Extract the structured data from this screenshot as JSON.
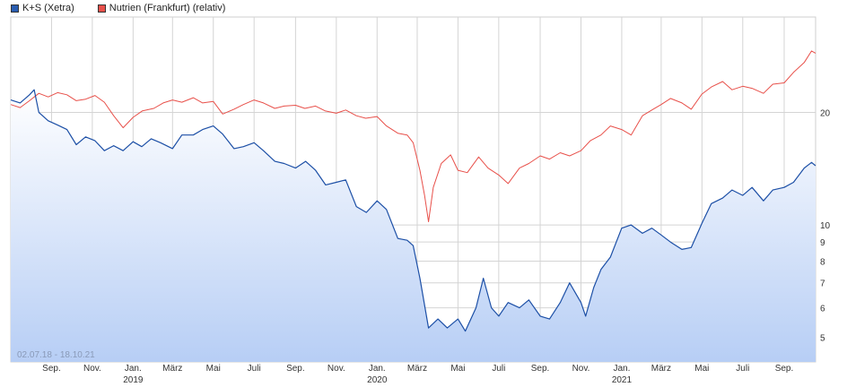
{
  "legend": [
    {
      "label": "K+S (Xetra)",
      "color": "#2a5db0"
    },
    {
      "label": "Nutrien (Frankfurt) (relativ)",
      "color": "#e8504a"
    }
  ],
  "date_range": "02.07.18 - 18.10.21",
  "colors": {
    "ks_line": "#1c4fa6",
    "nutrien_line": "#e8504a",
    "area_top": "#ffffff",
    "area_bottom": "#b7cef5",
    "grid": "#d4d4d4"
  },
  "chart_data": {
    "type": "line",
    "y_scale": "log",
    "ylim": [
      4.3,
      36
    ],
    "y_ticks": [
      {
        "value": 5,
        "label": "5"
      },
      {
        "value": 6,
        "label": "6"
      },
      {
        "value": 7,
        "label": "7"
      },
      {
        "value": 8,
        "label": "8"
      },
      {
        "value": 9,
        "label": "9"
      },
      {
        "value": 10,
        "label": "10"
      },
      {
        "value": 20,
        "label": "20"
      }
    ],
    "x_ticks": [
      {
        "date": "2018-09-01",
        "label": "Sep.",
        "year": ""
      },
      {
        "date": "2018-11-01",
        "label": "Nov.",
        "year": ""
      },
      {
        "date": "2019-01-01",
        "label": "Jan.",
        "year": "2019"
      },
      {
        "date": "2019-03-01",
        "label": "März",
        "year": ""
      },
      {
        "date": "2019-05-01",
        "label": "Mai",
        "year": ""
      },
      {
        "date": "2019-07-01",
        "label": "Juli",
        "year": ""
      },
      {
        "date": "2019-09-01",
        "label": "Sep.",
        "year": ""
      },
      {
        "date": "2019-11-01",
        "label": "Nov.",
        "year": ""
      },
      {
        "date": "2020-01-01",
        "label": "Jan.",
        "year": "2020"
      },
      {
        "date": "2020-03-01",
        "label": "März",
        "year": ""
      },
      {
        "date": "2020-05-01",
        "label": "Mai",
        "year": ""
      },
      {
        "date": "2020-07-01",
        "label": "Juli",
        "year": ""
      },
      {
        "date": "2020-09-01",
        "label": "Sep.",
        "year": ""
      },
      {
        "date": "2020-11-01",
        "label": "Nov.",
        "year": ""
      },
      {
        "date": "2021-01-01",
        "label": "Jan.",
        "year": "2021"
      },
      {
        "date": "2021-03-01",
        "label": "März",
        "year": ""
      },
      {
        "date": "2021-05-01",
        "label": "Mai",
        "year": ""
      },
      {
        "date": "2021-07-01",
        "label": "Juli",
        "year": ""
      },
      {
        "date": "2021-09-01",
        "label": "Sep.",
        "year": ""
      }
    ],
    "xlim": [
      "2018-07-02",
      "2021-10-18"
    ],
    "series": [
      {
        "name": "K+S (Xetra)",
        "points": [
          [
            "2018-07-02",
            21.6
          ],
          [
            "2018-07-16",
            21.2
          ],
          [
            "2018-07-30",
            22.3
          ],
          [
            "2018-08-06",
            23.0
          ],
          [
            "2018-08-13",
            20.0
          ],
          [
            "2018-08-27",
            19.0
          ],
          [
            "2018-09-10",
            18.5
          ],
          [
            "2018-09-24",
            18.0
          ],
          [
            "2018-10-08",
            16.4
          ],
          [
            "2018-10-22",
            17.2
          ],
          [
            "2018-11-05",
            16.8
          ],
          [
            "2018-11-19",
            15.8
          ],
          [
            "2018-12-03",
            16.3
          ],
          [
            "2018-12-17",
            15.8
          ],
          [
            "2019-01-01",
            16.7
          ],
          [
            "2019-01-14",
            16.2
          ],
          [
            "2019-01-28",
            17.0
          ],
          [
            "2019-02-11",
            16.6
          ],
          [
            "2019-03-01",
            16.0
          ],
          [
            "2019-03-15",
            17.4
          ],
          [
            "2019-04-01",
            17.4
          ],
          [
            "2019-04-15",
            18.0
          ],
          [
            "2019-05-01",
            18.4
          ],
          [
            "2019-05-15",
            17.5
          ],
          [
            "2019-06-01",
            16.0
          ],
          [
            "2019-06-15",
            16.2
          ],
          [
            "2019-07-01",
            16.6
          ],
          [
            "2019-07-15",
            15.8
          ],
          [
            "2019-08-01",
            14.8
          ],
          [
            "2019-08-15",
            14.6
          ],
          [
            "2019-09-01",
            14.2
          ],
          [
            "2019-09-16",
            14.8
          ],
          [
            "2019-10-01",
            14.0
          ],
          [
            "2019-10-16",
            12.8
          ],
          [
            "2019-11-01",
            13.0
          ],
          [
            "2019-11-15",
            13.2
          ],
          [
            "2019-12-01",
            11.2
          ],
          [
            "2019-12-16",
            10.8
          ],
          [
            "2020-01-01",
            11.6
          ],
          [
            "2020-01-15",
            11.0
          ],
          [
            "2020-02-01",
            9.2
          ],
          [
            "2020-02-15",
            9.1
          ],
          [
            "2020-02-24",
            8.8
          ],
          [
            "2020-03-05",
            7.2
          ],
          [
            "2020-03-12",
            6.1
          ],
          [
            "2020-03-18",
            5.3
          ],
          [
            "2020-04-01",
            5.6
          ],
          [
            "2020-04-15",
            5.3
          ],
          [
            "2020-05-01",
            5.6
          ],
          [
            "2020-05-12",
            5.2
          ],
          [
            "2020-05-28",
            6.0
          ],
          [
            "2020-06-08",
            7.2
          ],
          [
            "2020-06-20",
            6.0
          ],
          [
            "2020-07-01",
            5.7
          ],
          [
            "2020-07-15",
            6.2
          ],
          [
            "2020-08-01",
            6.0
          ],
          [
            "2020-08-15",
            6.3
          ],
          [
            "2020-09-01",
            5.7
          ],
          [
            "2020-09-15",
            5.6
          ],
          [
            "2020-10-01",
            6.2
          ],
          [
            "2020-10-15",
            7.0
          ],
          [
            "2020-11-01",
            6.2
          ],
          [
            "2020-11-08",
            5.7
          ],
          [
            "2020-11-20",
            6.8
          ],
          [
            "2020-12-01",
            7.6
          ],
          [
            "2020-12-15",
            8.2
          ],
          [
            "2021-01-01",
            9.8
          ],
          [
            "2021-01-15",
            10.0
          ],
          [
            "2021-02-01",
            9.5
          ],
          [
            "2021-02-15",
            9.8
          ],
          [
            "2021-03-01",
            9.4
          ],
          [
            "2021-03-15",
            9.0
          ],
          [
            "2021-04-01",
            8.6
          ],
          [
            "2021-04-15",
            8.7
          ],
          [
            "2021-05-01",
            10.1
          ],
          [
            "2021-05-15",
            11.4
          ],
          [
            "2021-06-01",
            11.8
          ],
          [
            "2021-06-15",
            12.4
          ],
          [
            "2021-07-01",
            12.0
          ],
          [
            "2021-07-15",
            12.6
          ],
          [
            "2021-08-01",
            11.6
          ],
          [
            "2021-08-15",
            12.4
          ],
          [
            "2021-09-01",
            12.6
          ],
          [
            "2021-09-15",
            13.0
          ],
          [
            "2021-10-01",
            14.2
          ],
          [
            "2021-10-12",
            14.7
          ],
          [
            "2021-10-18",
            14.4
          ]
        ]
      },
      {
        "name": "Nutrien (Frankfurt) (relativ)",
        "points": [
          [
            "2018-07-02",
            21.0
          ],
          [
            "2018-07-16",
            20.6
          ],
          [
            "2018-07-30",
            21.5
          ],
          [
            "2018-08-13",
            22.5
          ],
          [
            "2018-08-27",
            22.0
          ],
          [
            "2018-09-10",
            22.6
          ],
          [
            "2018-09-24",
            22.3
          ],
          [
            "2018-10-08",
            21.5
          ],
          [
            "2018-10-22",
            21.7
          ],
          [
            "2018-11-05",
            22.2
          ],
          [
            "2018-11-19",
            21.3
          ],
          [
            "2018-12-03",
            19.6
          ],
          [
            "2018-12-17",
            18.2
          ],
          [
            "2019-01-01",
            19.4
          ],
          [
            "2019-01-15",
            20.2
          ],
          [
            "2019-02-01",
            20.5
          ],
          [
            "2019-02-15",
            21.2
          ],
          [
            "2019-03-01",
            21.6
          ],
          [
            "2019-03-15",
            21.3
          ],
          [
            "2019-04-01",
            21.9
          ],
          [
            "2019-04-15",
            21.2
          ],
          [
            "2019-05-01",
            21.4
          ],
          [
            "2019-05-15",
            19.8
          ],
          [
            "2019-06-01",
            20.4
          ],
          [
            "2019-06-15",
            21.0
          ],
          [
            "2019-07-01",
            21.6
          ],
          [
            "2019-07-15",
            21.2
          ],
          [
            "2019-08-01",
            20.5
          ],
          [
            "2019-08-15",
            20.8
          ],
          [
            "2019-09-01",
            20.9
          ],
          [
            "2019-09-15",
            20.5
          ],
          [
            "2019-10-01",
            20.8
          ],
          [
            "2019-10-15",
            20.2
          ],
          [
            "2019-11-01",
            19.9
          ],
          [
            "2019-11-15",
            20.3
          ],
          [
            "2019-12-01",
            19.6
          ],
          [
            "2019-12-15",
            19.3
          ],
          [
            "2020-01-01",
            19.5
          ],
          [
            "2020-01-15",
            18.4
          ],
          [
            "2020-02-01",
            17.6
          ],
          [
            "2020-02-15",
            17.4
          ],
          [
            "2020-02-24",
            16.6
          ],
          [
            "2020-03-05",
            14.0
          ],
          [
            "2020-03-12",
            12.0
          ],
          [
            "2020-03-18",
            10.2
          ],
          [
            "2020-03-25",
            12.6
          ],
          [
            "2020-04-06",
            14.6
          ],
          [
            "2020-04-20",
            15.4
          ],
          [
            "2020-05-01",
            14.0
          ],
          [
            "2020-05-15",
            13.8
          ],
          [
            "2020-06-01",
            15.2
          ],
          [
            "2020-06-15",
            14.2
          ],
          [
            "2020-07-01",
            13.6
          ],
          [
            "2020-07-15",
            12.9
          ],
          [
            "2020-08-01",
            14.2
          ],
          [
            "2020-08-15",
            14.6
          ],
          [
            "2020-09-01",
            15.3
          ],
          [
            "2020-09-15",
            15.0
          ],
          [
            "2020-10-01",
            15.6
          ],
          [
            "2020-10-15",
            15.3
          ],
          [
            "2020-11-01",
            15.8
          ],
          [
            "2020-11-15",
            16.8
          ],
          [
            "2020-12-01",
            17.4
          ],
          [
            "2020-12-15",
            18.4
          ],
          [
            "2021-01-01",
            18.0
          ],
          [
            "2021-01-15",
            17.4
          ],
          [
            "2021-02-01",
            19.6
          ],
          [
            "2021-02-15",
            20.3
          ],
          [
            "2021-03-01",
            21.0
          ],
          [
            "2021-03-15",
            21.8
          ],
          [
            "2021-04-01",
            21.2
          ],
          [
            "2021-04-15",
            20.4
          ],
          [
            "2021-05-01",
            22.4
          ],
          [
            "2021-05-15",
            23.4
          ],
          [
            "2021-06-01",
            24.2
          ],
          [
            "2021-06-15",
            23.0
          ],
          [
            "2021-07-01",
            23.5
          ],
          [
            "2021-07-15",
            23.2
          ],
          [
            "2021-08-01",
            22.5
          ],
          [
            "2021-08-15",
            23.8
          ],
          [
            "2021-09-01",
            24.0
          ],
          [
            "2021-09-15",
            25.6
          ],
          [
            "2021-10-01",
            27.2
          ],
          [
            "2021-10-12",
            29.2
          ],
          [
            "2021-10-18",
            28.8
          ]
        ]
      }
    ]
  }
}
